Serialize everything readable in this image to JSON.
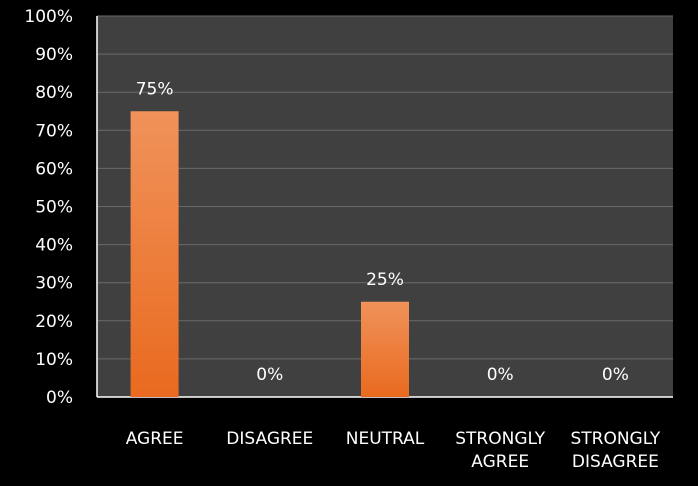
{
  "chart_data": {
    "type": "bar",
    "title": "",
    "xlabel": "",
    "ylabel": "",
    "categories": [
      [
        "AGREE"
      ],
      [
        "DISAGREE"
      ],
      [
        "NEUTRAL"
      ],
      [
        "STRONGLY",
        "AGREE"
      ],
      [
        "STRONGLY",
        "DISAGREE"
      ]
    ],
    "values": [
      75,
      0,
      25,
      0,
      0
    ],
    "value_labels": [
      "75%",
      "0%",
      "25%",
      "0%",
      "0%"
    ],
    "ylim": [
      0,
      100
    ],
    "yticks": [
      0,
      10,
      20,
      30,
      40,
      50,
      60,
      70,
      80,
      90,
      100
    ],
    "ytick_labels": [
      "0%",
      "10%",
      "20%",
      "30%",
      "40%",
      "50%",
      "60%",
      "70%",
      "80%",
      "90%",
      "100%"
    ],
    "grid": true,
    "legend": "none"
  },
  "colors": {
    "background": "#000000",
    "plot_area": "#404040",
    "gridline": "#6a6a6a",
    "axis_line": "#ffffff",
    "text": "#ffffff",
    "bar_top": "#f0925a",
    "bar_bottom": "#e96a1f"
  }
}
